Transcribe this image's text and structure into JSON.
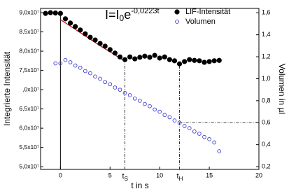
{
  "chart_data": {
    "type": "scatter",
    "equation": [
      "I=I",
      "0",
      "e",
      "-0,0223t"
    ],
    "xlabel": "t in s",
    "ylabel": "Integrierte Intensität",
    "y2label": "Volumen in µl",
    "xlim": [
      -2,
      20
    ],
    "xticks": [
      0,
      5,
      10,
      15,
      20
    ],
    "ylim": [
      49300000,
      91100000
    ],
    "yticks": [
      {
        "value": 50000000,
        "label": "5,0x10⁷"
      },
      {
        "value": 55000000,
        "label": "5,5x10⁷"
      },
      {
        "value": 60000000,
        "label": "6,0x10⁷"
      },
      {
        "value": 65000000,
        "label": "6,5x10⁷"
      },
      {
        "value": 70000000,
        "label": ",0x10⁷"
      },
      {
        "value": 75000000,
        "label": "7,5x10⁷"
      },
      {
        "value": 80000000,
        "label": "8,0x10⁷"
      },
      {
        "value": 85000000,
        "label": "8,5x10⁷"
      },
      {
        "value": 90000000,
        "label": "9,0x10⁷"
      }
    ],
    "y2lim": [
      0.175,
      1.64
    ],
    "y2ticks": [
      {
        "value": 0.2,
        "label": "0,2"
      },
      {
        "value": 0.4,
        "label": "0,4"
      },
      {
        "value": 0.6,
        "label": "0,6"
      },
      {
        "value": 0.8,
        "label": "0,8"
      },
      {
        "value": 1.0,
        "label": "1,0"
      },
      {
        "value": 1.2,
        "label": "1,2"
      },
      {
        "value": 1.4,
        "label": "1,4"
      },
      {
        "value": 1.6,
        "label": "1,6"
      }
    ],
    "legend": "upper right",
    "series": [
      {
        "name": "LIF-Intensität",
        "color": "#000000",
        "marker": "filled",
        "x": [
          -1.5,
          -1,
          -0.5,
          0,
          0.5,
          1,
          1.5,
          2,
          2.5,
          3,
          3.5,
          4,
          4.5,
          5,
          5.5,
          6,
          6.5,
          7,
          7.5,
          8,
          8.5,
          9,
          9.5,
          10,
          10.5,
          11,
          11.5,
          12,
          12.5,
          13,
          13.5,
          14,
          14.5,
          15,
          15.5,
          16
        ],
        "values": [
          89800000,
          90000000,
          89900000,
          89800000,
          88400000,
          87300000,
          86400000,
          85500000,
          84500000,
          83600000,
          82900000,
          82000000,
          81300000,
          80400000,
          79500000,
          78500000,
          77800000,
          78500000,
          78000000,
          78400000,
          78700000,
          78400000,
          78900000,
          78200000,
          78500000,
          77800000,
          77500000,
          76700000,
          77300000,
          77800000,
          77600000,
          77500000,
          77100000,
          77300000,
          77500000,
          77600000
        ]
      },
      {
        "name": "Volumen",
        "color": "#3a3acc",
        "marker": "open",
        "axis": "y2",
        "x": [
          -0.5,
          0,
          0.5,
          1,
          1.5,
          2,
          2.5,
          3,
          3.5,
          4,
          4.5,
          5,
          5.5,
          6,
          6.5,
          7,
          7.5,
          8,
          8.5,
          9,
          9.5,
          10,
          10.5,
          11,
          11.5,
          12,
          12.5,
          13,
          13.5,
          14,
          14.5,
          15,
          15.5,
          16
        ],
        "values": [
          1.14,
          1.14,
          1.17,
          1.15,
          1.12,
          1.1,
          1.07,
          1.05,
          1.02,
          1.0,
          0.97,
          0.95,
          0.92,
          0.9,
          0.87,
          0.85,
          0.82,
          0.8,
          0.77,
          0.75,
          0.72,
          0.7,
          0.67,
          0.65,
          0.62,
          0.6,
          0.57,
          0.55,
          0.52,
          0.5,
          0.47,
          0.45,
          0.42,
          0.34
        ]
      }
    ],
    "fit": {
      "color": "#cc0000",
      "x": [
        0,
        1,
        2,
        3,
        4,
        5,
        6,
        6.5
      ],
      "values": [
        88200000,
        86500000,
        84800000,
        83100000,
        81400000,
        79800000,
        78200000,
        77300000
      ]
    },
    "reference_line": {
      "x": 0,
      "y": 90000000
    },
    "markers": [
      {
        "label": [
          "t",
          "S"
        ],
        "x": 6.5,
        "y": 77800000
      },
      {
        "label": [
          "t",
          "H"
        ],
        "x": 12,
        "y": 76700000,
        "y2": 0.6
      }
    ]
  }
}
